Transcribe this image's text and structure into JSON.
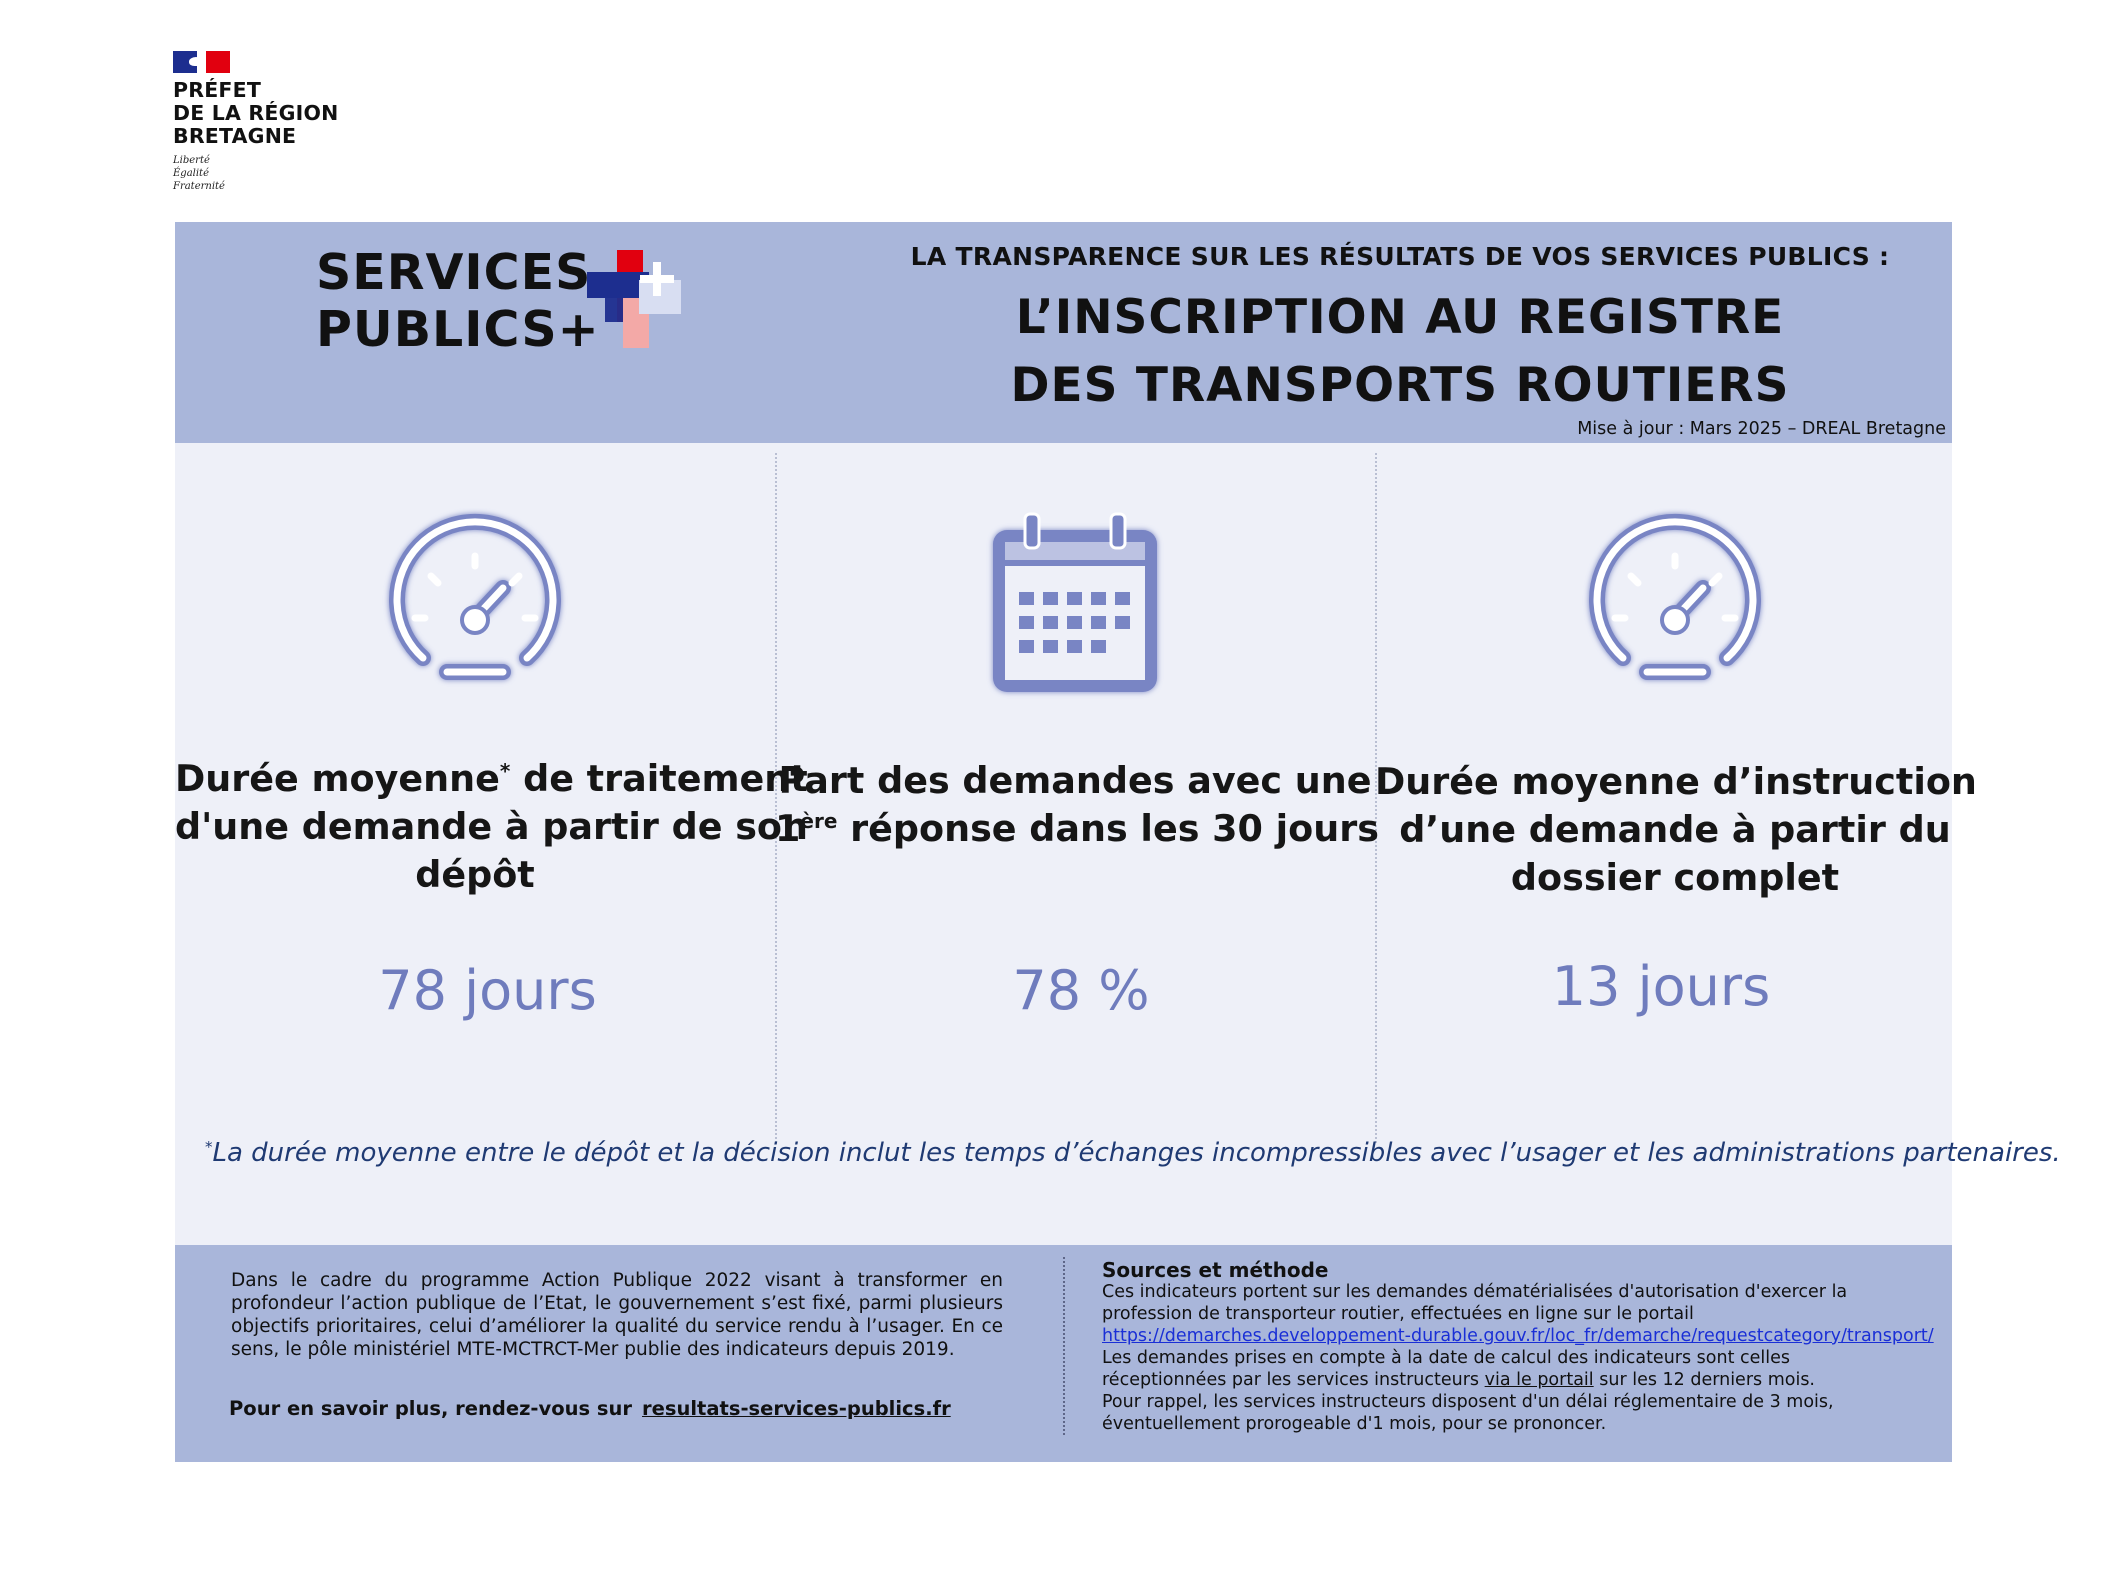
{
  "gov_logo": {
    "name_lines": [
      "PRÉFET",
      "DE LA RÉGION",
      "BRETAGNE"
    ],
    "motto": [
      "Liberté",
      "Égalité",
      "Fraternité"
    ],
    "icon": "marianne-flag-icon"
  },
  "header": {
    "brand_lines": [
      "SERVICES",
      "PUBLICS+"
    ],
    "brand_mark": "services-publics-plus-logo",
    "kicker": "LA TRANSPARENCE SUR LES  RÉSULTATS DE VOS SERVICES PUBLICS :",
    "title_lines": [
      "L’INSCRIPTION AU REGISTRE",
      "DES TRANSPORTS ROUTIERS"
    ],
    "update": "Mise à jour : Mars 2025 – DREAL Bretagne"
  },
  "indicators": [
    {
      "icon": "speedometer-icon",
      "label_lines": [
        "Durée moyenne",
        "d'une demande à partir de son",
        "dépôt"
      ],
      "label_suffix": "de traitement",
      "star": "*",
      "value": "78 jours"
    },
    {
      "icon": "calendar-icon",
      "label_lines": [
        "Part des demandes avec une",
        "1",
        "ère",
        "réponse dans les 30 jours"
      ],
      "value": "78 %"
    },
    {
      "icon": "speedometer-icon",
      "label_lines": [
        "Durée moyenne d’instruction",
        "d’une demande à partir du",
        "dossier complet"
      ],
      "value": "13 jours"
    }
  ],
  "footnote": {
    "star": "*",
    "text": "La durée moyenne entre le dépôt et la décision inclut les temps d’échanges incompressibles avec l’usager et les administrations partenaires."
  },
  "footer": {
    "intro": "Dans le cadre du programme Action Publique 2022 visant à transformer en profondeur l’action publique de l’Etat, le gouvernement s’est fixé, parmi plusieurs objectifs prioritaires, celui d’améliorer la qualité du service rendu à l’usager. En ce sens, le pôle ministériel MTE-MCTRCT-Mer publie des indicateurs depuis 2019.",
    "more_label": "Pour en savoir plus, rendez-vous sur",
    "more_link": "resultats-services-publics.fr",
    "sources_title": "Sources et méthode",
    "sources_p1": "Ces indicateurs portent sur les demandes dématérialisées d'autorisation d'exercer la profession de transporteur routier, effectuées en ligne sur le portail",
    "sources_link": "https://demarches.developpement-durable.gouv.fr/loc_fr/demarche/requestcategory/transport/",
    "sources_p2a": "Les demandes prises en compte à la date de calcul des indicateurs sont celles réceptionnées par les services instructeurs",
    "sources_p2_link": "via le portail",
    "sources_p2b": "sur les 12 derniers mois.",
    "sources_p3": "Pour rappel, les services instructeurs disposent d'un délai réglementaire de 3 mois, éventuellement prorogeable d'1 mois, pour se prononcer."
  }
}
